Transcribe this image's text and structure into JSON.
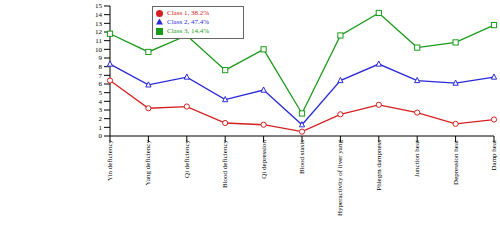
{
  "chart_data": {
    "type": "line",
    "categories": [
      "Yin deficiency",
      "Yang deficiency",
      "Qi deficiency",
      "Blood deficiency",
      "Qi depression",
      "Blood stasis",
      "Hyperactivity of liver yang",
      "Phlegm dampness",
      "Junction heat",
      "Depression heat",
      "Damp heat"
    ],
    "series": [
      {
        "name": "Class 1, 38.2%",
        "color": "#d42020",
        "marker": "circle",
        "values": [
          6.4,
          3.2,
          3.4,
          1.5,
          1.3,
          0.5,
          2.5,
          3.6,
          2.7,
          1.4,
          1.9
        ]
      },
      {
        "name": "Class 2, 47.4%",
        "color": "#2a2ad8",
        "marker": "triangle",
        "values": [
          8.3,
          5.9,
          6.8,
          4.2,
          5.3,
          1.3,
          6.4,
          8.3,
          6.4,
          6.1,
          6.8
        ]
      },
      {
        "name": "Class 3, 14.4%",
        "color": "#1a9a1a",
        "marker": "square",
        "values": [
          11.8,
          9.7,
          11.6,
          7.6,
          10.0,
          2.6,
          11.6,
          14.2,
          10.2,
          10.8,
          12.8
        ]
      }
    ],
    "ylim": [
      0,
      15
    ],
    "yticks": [
      0,
      1,
      2,
      3,
      4,
      5,
      6,
      7,
      8,
      9,
      10,
      11,
      12,
      13,
      14,
      15
    ],
    "grid": false,
    "legend": "top"
  }
}
